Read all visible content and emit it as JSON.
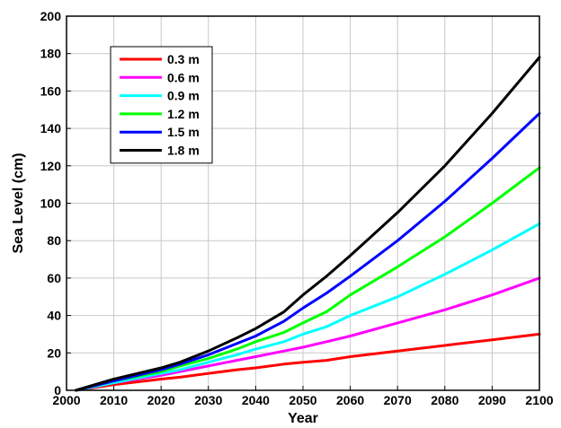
{
  "chart_data": {
    "type": "line",
    "title": "",
    "xlabel": "Year",
    "ylabel": "Sea Level (cm)",
    "xlim": [
      2000,
      2100
    ],
    "ylim": [
      0,
      200
    ],
    "xticks": [
      2000,
      2010,
      2020,
      2030,
      2040,
      2050,
      2060,
      2070,
      2080,
      2090,
      2100
    ],
    "yticks": [
      0,
      20,
      40,
      60,
      80,
      100,
      120,
      140,
      160,
      180,
      200
    ],
    "grid": true,
    "legend_position": "top-left",
    "x": [
      2002,
      2010,
      2020,
      2024,
      2030,
      2036,
      2040,
      2046,
      2050,
      2055,
      2060,
      2070,
      2080,
      2090,
      2100
    ],
    "series": [
      {
        "name": "0.3 m",
        "color": "#ff0000",
        "values": [
          0,
          3,
          6,
          7,
          9,
          11,
          12,
          14,
          15,
          16,
          18,
          21,
          24,
          27,
          30
        ]
      },
      {
        "name": "0.6 m",
        "color": "#ff00ff",
        "values": [
          0,
          4,
          8,
          10,
          13,
          16,
          18,
          21,
          23,
          26,
          29,
          36,
          43,
          51,
          60
        ]
      },
      {
        "name": "0.9 m",
        "color": "#00ffff",
        "values": [
          0,
          4,
          9,
          11,
          15,
          19,
          22,
          26,
          30,
          34,
          40,
          50,
          62,
          75,
          89
        ]
      },
      {
        "name": "1.2 m",
        "color": "#00ff00",
        "values": [
          0,
          5,
          10,
          13,
          17,
          22,
          26,
          31,
          36,
          42,
          51,
          66,
          82,
          100,
          119
        ]
      },
      {
        "name": "1.5 m",
        "color": "#0000ff",
        "values": [
          0,
          5,
          11,
          14,
          19,
          25,
          29,
          37,
          44,
          52,
          61,
          80,
          101,
          124,
          148
        ]
      },
      {
        "name": "1.8 m",
        "color": "#000000",
        "values": [
          0,
          6,
          12,
          15,
          21,
          28,
          33,
          42,
          51,
          61,
          72,
          95,
          120,
          148,
          178
        ]
      }
    ]
  }
}
